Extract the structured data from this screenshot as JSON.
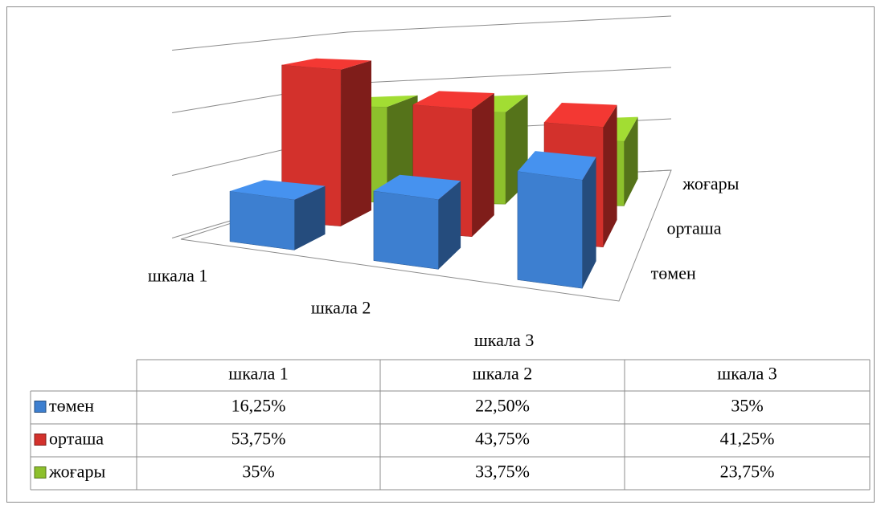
{
  "chart_data": {
    "type": "bar3d",
    "categories": [
      "шкала 1",
      "шкала 2",
      "шкала 3"
    ],
    "series": [
      {
        "name": "төмен",
        "color": "#3d7fd0",
        "values": [
          16.25,
          22.5,
          35
        ],
        "value_labels": [
          "16,25%",
          "22,50%",
          "35%"
        ]
      },
      {
        "name": "орташа",
        "color": "#d3312c",
        "values": [
          53.75,
          43.75,
          41.25
        ],
        "value_labels": [
          "53,75%",
          "43,75%",
          "41,25%"
        ]
      },
      {
        "name": "жоғары",
        "color": "#8dc02c",
        "values": [
          35,
          33.75,
          23.75
        ],
        "value_labels": [
          "35%",
          "33,75%",
          "23,75%"
        ]
      }
    ],
    "ylim": [
      0,
      60
    ],
    "yticks": [
      0,
      20,
      40,
      60
    ],
    "grid": true,
    "data_table": true
  }
}
